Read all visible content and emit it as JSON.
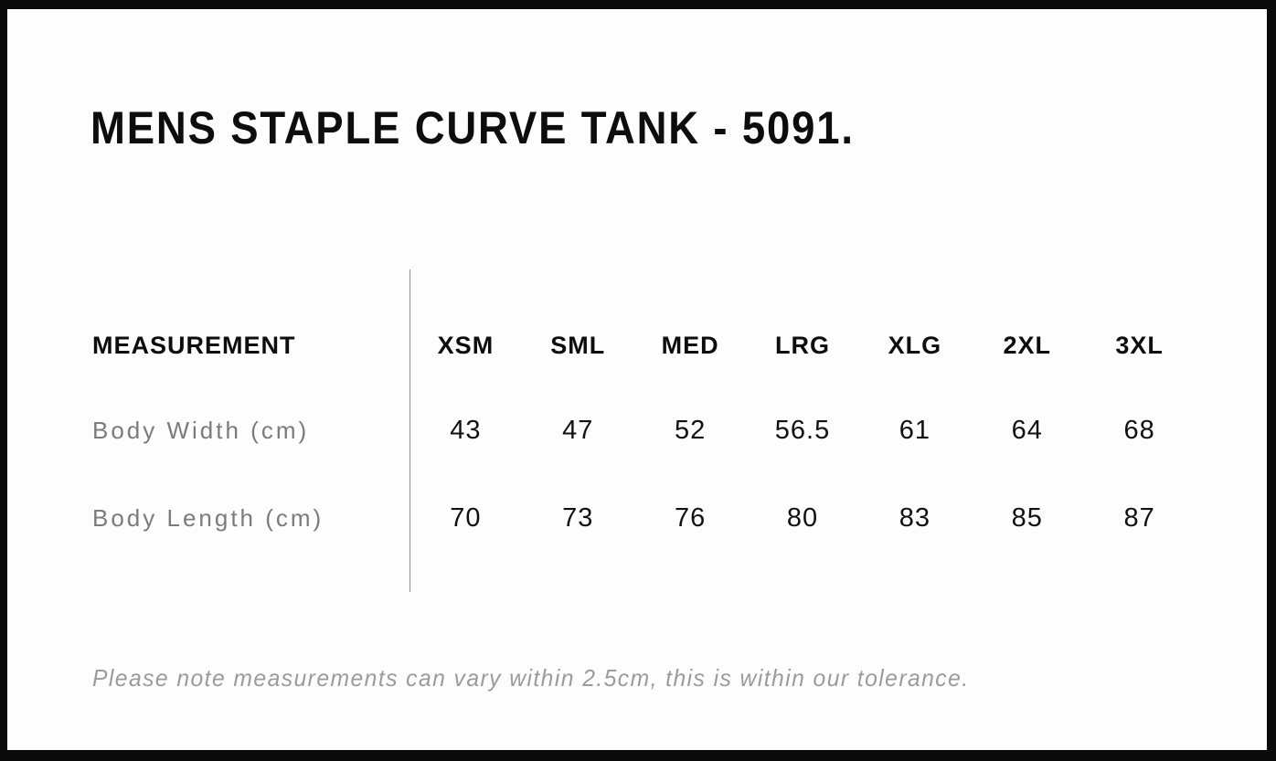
{
  "title": "MENS STAPLE CURVE TANK - 5091.",
  "size_chart": {
    "measurement_header": "MEASUREMENT",
    "sizes": [
      "XSM",
      "SML",
      "MED",
      "LRG",
      "XLG",
      "2XL",
      "3XL"
    ],
    "rows": [
      {
        "label": "Body Width (cm)",
        "values": [
          "43",
          "47",
          "52",
          "56.5",
          "61",
          "64",
          "68"
        ]
      },
      {
        "label": "Body Length (cm)",
        "values": [
          "70",
          "73",
          "76",
          "80",
          "83",
          "85",
          "87"
        ]
      }
    ]
  },
  "note": "Please note measurements can vary within 2.5cm, this is within our tolerance.",
  "colors": {
    "frame": "#0a0a0a",
    "panel_background": "#fdfdfd",
    "heading_text": "#0d0d0d",
    "value_text": "#111111",
    "row_label_gray": "#7b7b7b",
    "note_gray": "#9b9b9b",
    "divider_gray": "#919191"
  },
  "chart_data": {
    "type": "table",
    "title": "MENS STAPLE CURVE TANK - 5091.",
    "categories": [
      "XSM",
      "SML",
      "MED",
      "LRG",
      "XLG",
      "2XL",
      "3XL"
    ],
    "series": [
      {
        "name": "Body Width (cm)",
        "values": [
          43,
          47,
          52,
          56.5,
          61,
          64,
          68
        ]
      },
      {
        "name": "Body Length (cm)",
        "values": [
          70,
          73,
          76,
          80,
          83,
          85,
          87
        ]
      }
    ],
    "annotations": [
      "Please note measurements can vary within 2.5cm, this is within our tolerance."
    ],
    "layout": "first column headers left-aligned, size columns evenly spaced right of a vertical divider"
  }
}
